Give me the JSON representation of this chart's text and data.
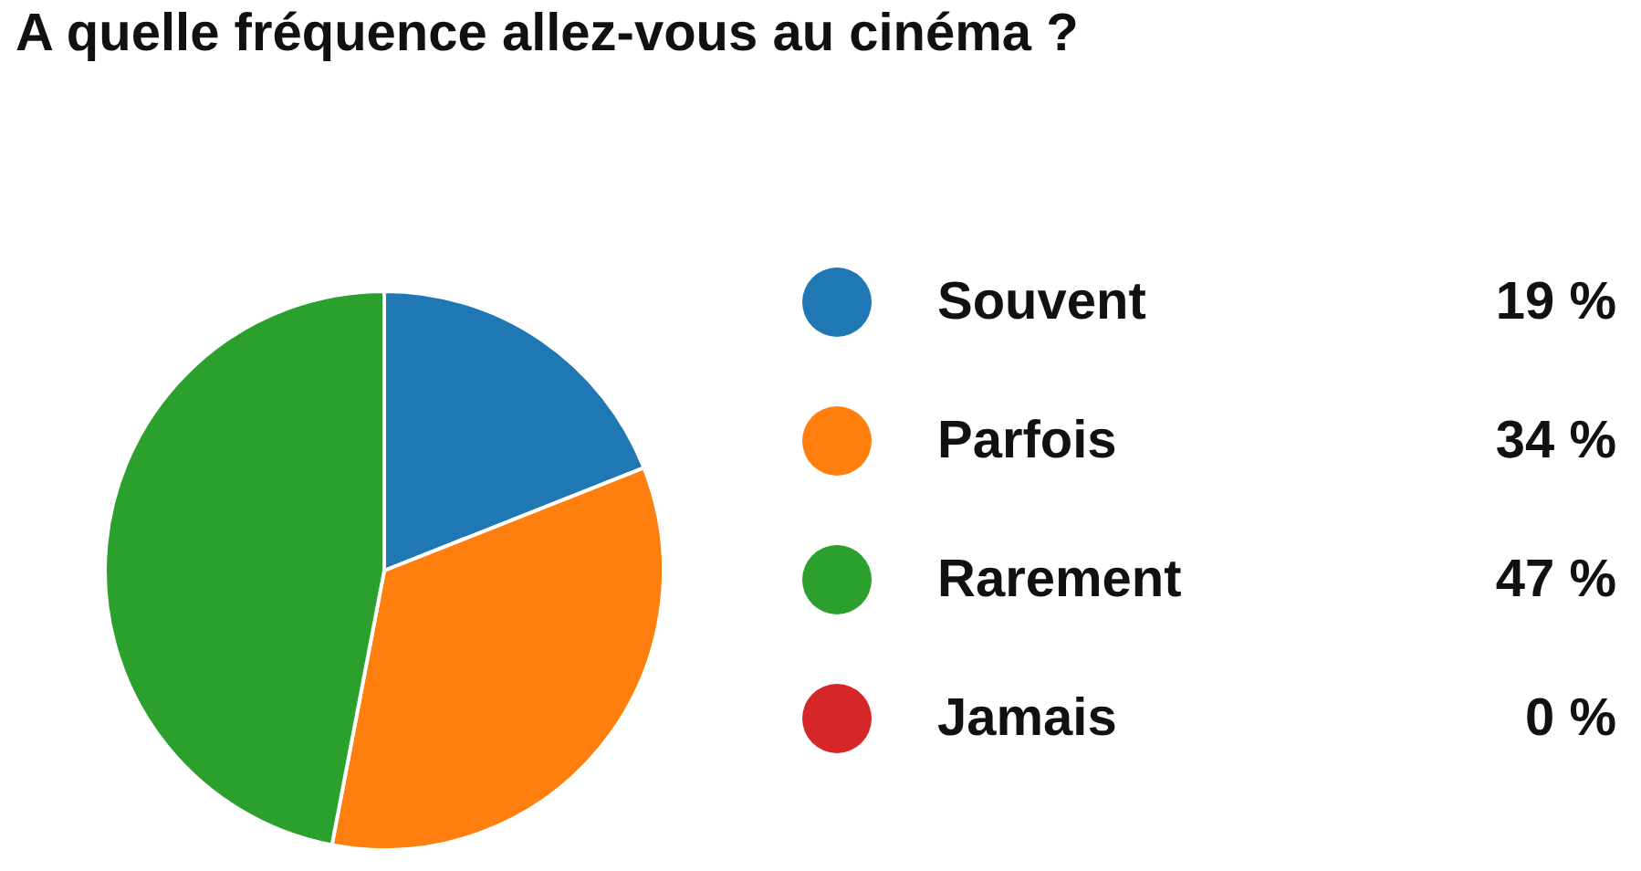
{
  "chart_data": {
    "type": "pie",
    "title": "A quelle fréquence allez-vous au cinéma ?",
    "categories": [
      "Souvent",
      "Parfois",
      "Rarement",
      "Jamais"
    ],
    "values": [
      19,
      34,
      47,
      0
    ],
    "colors": [
      "#1f77b4",
      "#ff7f0e",
      "#2ca02c",
      "#d62728"
    ],
    "value_labels": [
      "19 %",
      "34 %",
      "47 %",
      "0 %"
    ],
    "legend": "right"
  }
}
